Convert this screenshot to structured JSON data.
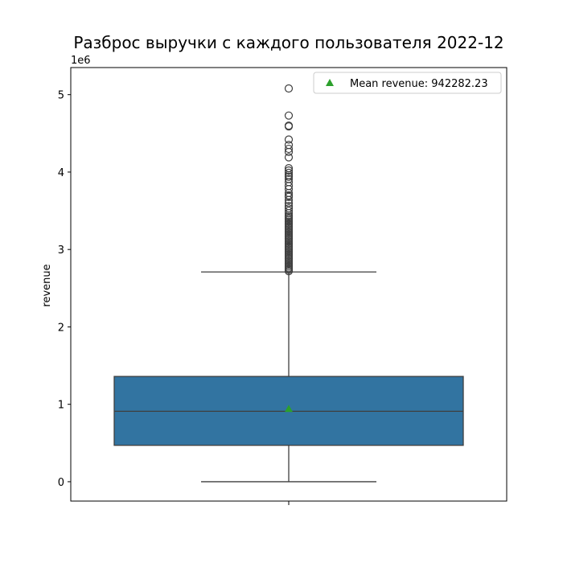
{
  "chart_data": {
    "type": "box",
    "title": "Разброс выручки с каждого пользователя 2022-12",
    "xlabel": "",
    "ylabel": "revenue",
    "y_offset_label": "1e6",
    "y_scale": 1000000,
    "ylim": [
      -250000,
      5350000
    ],
    "y_ticks": [
      0,
      1000000,
      2000000,
      3000000,
      4000000,
      5000000
    ],
    "y_tick_labels": [
      "0",
      "1",
      "2",
      "3",
      "4",
      "5"
    ],
    "grid": false,
    "legend_position": "top-right",
    "legend_label": "Mean revenue: 942282.23",
    "box": {
      "whisker_low": 0,
      "q1": 470000,
      "median": 910000,
      "q3": 1360000,
      "whisker_high": 2710000,
      "mean": 942282.23
    },
    "outliers": [
      2720000,
      2740000,
      2760000,
      2780000,
      2800000,
      2820000,
      2840000,
      2860000,
      2880000,
      2900000,
      2920000,
      2940000,
      2960000,
      2980000,
      3000000,
      3020000,
      3040000,
      3060000,
      3080000,
      3100000,
      3120000,
      3140000,
      3160000,
      3180000,
      3200000,
      3220000,
      3240000,
      3260000,
      3280000,
      3300000,
      3320000,
      3340000,
      3360000,
      3380000,
      3400000,
      3420000,
      3440000,
      3470000,
      3500000,
      3530000,
      3560000,
      3600000,
      3640000,
      3680000,
      3700000,
      3730000,
      3780000,
      3820000,
      3870000,
      3910000,
      3940000,
      3960000,
      3990000,
      4020000,
      4050000,
      4190000,
      4260000,
      4300000,
      4350000,
      4420000,
      4590000,
      4600000,
      4730000,
      5080000
    ],
    "colors": {
      "box_fill": "#3274a1",
      "box_line": "#3f3f3f",
      "mean_marker": "#2ca02c"
    }
  }
}
